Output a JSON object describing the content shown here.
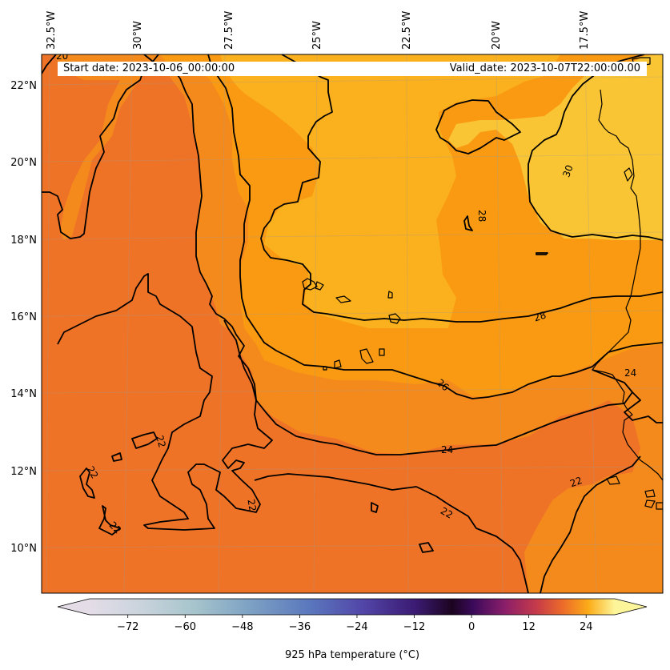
{
  "map": {
    "start_label": "Start date: 2023-10-06_00:00:00",
    "valid_label": "Valid_date: 2023-10-07T22:00:00.00",
    "lon_labels": [
      "32.5°W",
      "30°W",
      "27.5°W",
      "25°W",
      "22.5°W",
      "20°W",
      "17.5°W"
    ],
    "lat_labels": [
      "22°N",
      "20°N",
      "18°N",
      "16°N",
      "14°N",
      "12°N",
      "10°N"
    ],
    "contour_labels": {
      "c20": "20",
      "c22": "22",
      "c24": "24",
      "c26": "26",
      "c28": "28",
      "c30": "30"
    },
    "colors": {
      "t22": "#ef7326",
      "t24": "#f58a1c",
      "t26": "#f99a12",
      "t28": "#fbb01d",
      "t30": "#fac534",
      "coast": "#000000"
    }
  },
  "colorbar": {
    "ticks": [
      -72,
      -60,
      -48,
      -36,
      -24,
      -12,
      0,
      12,
      24
    ],
    "tick_labels": [
      "−72",
      "−60",
      "−48",
      "−36",
      "−24",
      "−12",
      "0",
      "12",
      "24"
    ],
    "vmin": -80,
    "vmax": 30,
    "label": "925 hPa temperature ($^\\circ$C)",
    "label_display": "925 hPa temperature (°C)",
    "extend": "both"
  }
}
